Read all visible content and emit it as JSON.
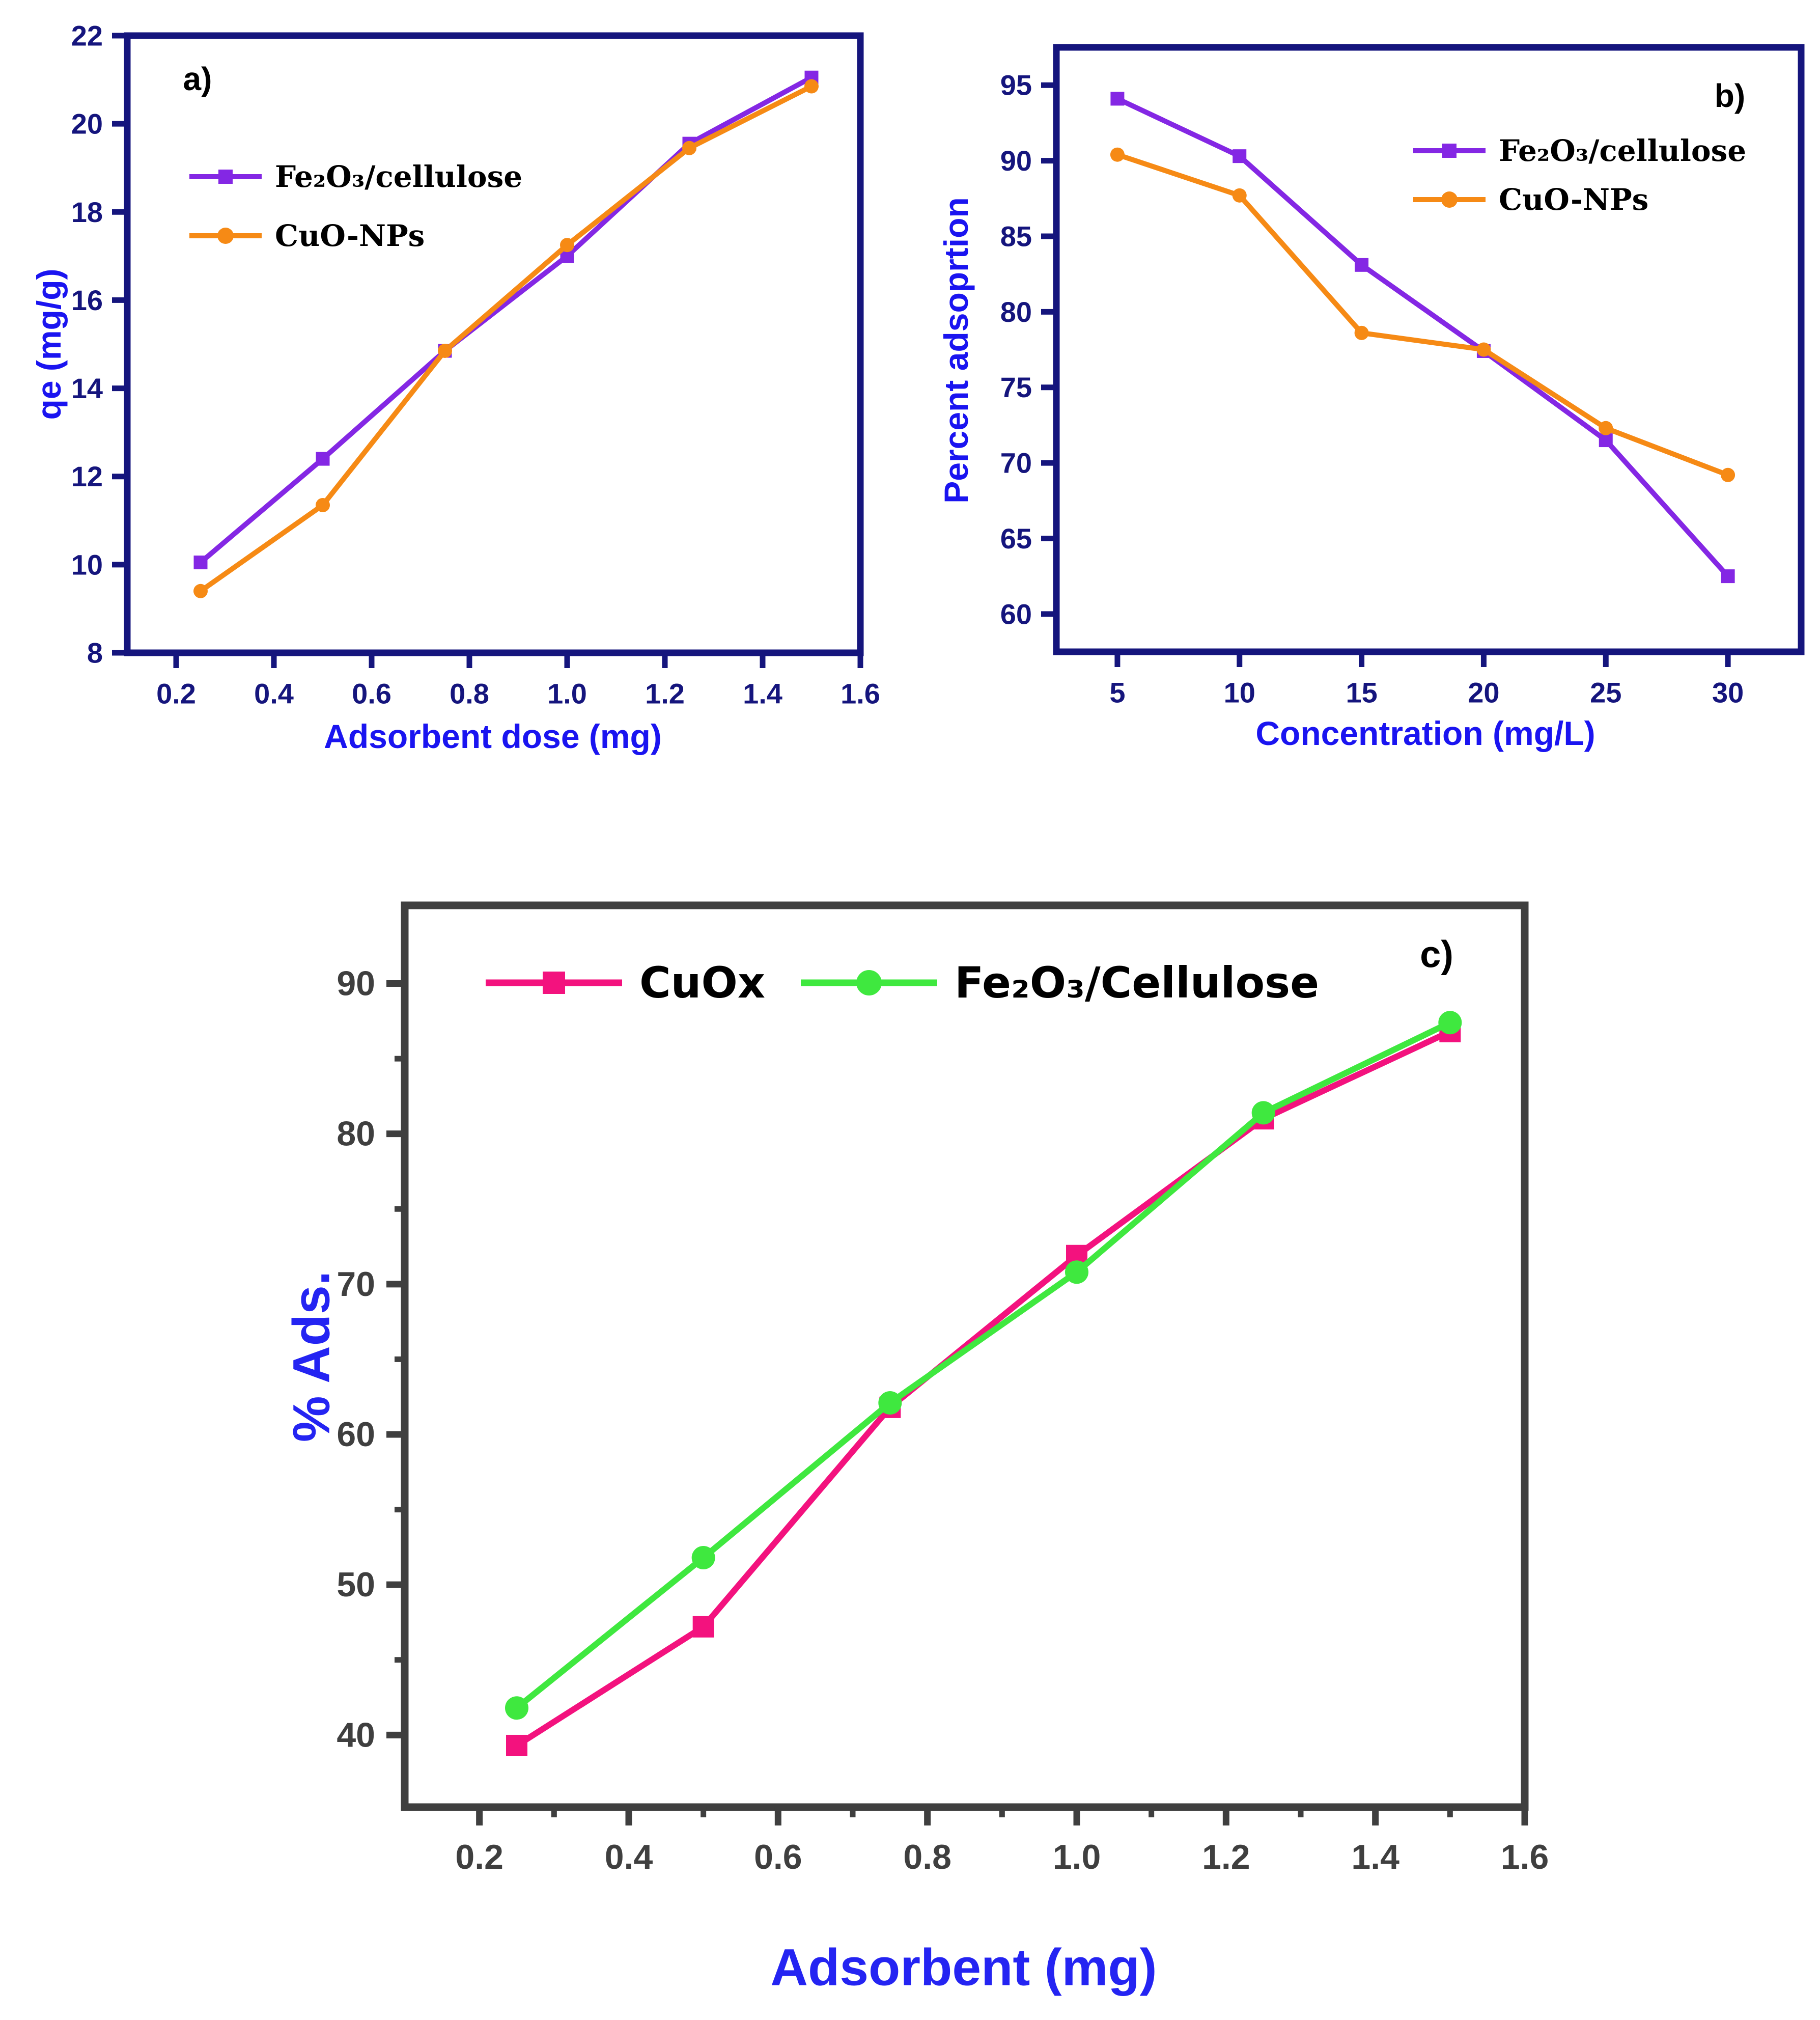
{
  "page": {
    "background": "#ffffff"
  },
  "chart_data": [
    {
      "id": "a",
      "type": "line",
      "panel_label": "a)",
      "x_axis": {
        "title": "Adsorbent dose (mg)",
        "tick_labels": [
          "0.2",
          "0.4",
          "0.6",
          "0.8",
          "1.0",
          "1.2",
          "1.4",
          "1.6"
        ],
        "range": [
          0.1,
          1.6
        ],
        "minor_ticks": []
      },
      "y_axis": {
        "title": "qe (mg/g)",
        "tick_labels": [
          "8",
          "10",
          "12",
          "14",
          "16",
          "18",
          "20",
          "22"
        ],
        "range": [
          8,
          22
        ],
        "minor_ticks": []
      },
      "axis_color": "#15157D",
      "tick_label_color": "#15157D",
      "title_color": "#1A14F0",
      "grid": false,
      "legend_position": "upper-left-inside",
      "series": [
        {
          "name": "Fe₂O₃/cellulose",
          "color": "#8427E4",
          "marker": "square",
          "x": [
            0.25,
            0.5,
            0.75,
            1.0,
            1.25,
            1.5
          ],
          "y": [
            10.05,
            12.4,
            14.85,
            17.0,
            19.55,
            21.05
          ]
        },
        {
          "name": "CuO-NPs",
          "color": "#F68A15",
          "marker": "circle",
          "x": [
            0.25,
            0.5,
            0.75,
            1.0,
            1.25,
            1.5
          ],
          "y": [
            9.4,
            11.35,
            14.85,
            17.25,
            19.45,
            20.85
          ]
        }
      ]
    },
    {
      "id": "b",
      "type": "line",
      "panel_label": "b)",
      "x_axis": {
        "title": "Concentration (mg/L)",
        "tick_labels": [
          "5",
          "10",
          "15",
          "20",
          "25",
          "30"
        ],
        "range": [
          2.5,
          33
        ],
        "minor_ticks": []
      },
      "y_axis": {
        "title": "Percent adsoprtion",
        "tick_labels": [
          "60",
          "65",
          "70",
          "75",
          "80",
          "85",
          "90",
          "95"
        ],
        "range": [
          57.5,
          97.5
        ],
        "minor_ticks": []
      },
      "axis_color": "#15157D",
      "tick_label_color": "#15157D",
      "title_color": "#1A14F0",
      "grid": false,
      "legend_position": "upper-right-inside",
      "series": [
        {
          "name": "Fe₂O₃/cellulose",
          "color": "#8427E4",
          "marker": "square",
          "x": [
            5,
            10,
            15,
            20,
            25,
            30
          ],
          "y": [
            94.1,
            90.3,
            83.1,
            77.4,
            71.5,
            62.5
          ]
        },
        {
          "name": "CuO-NPs",
          "color": "#F68A15",
          "marker": "circle",
          "x": [
            5,
            10,
            15,
            20,
            25,
            30
          ],
          "y": [
            90.4,
            87.7,
            78.6,
            77.5,
            72.3,
            69.2
          ]
        }
      ]
    },
    {
      "id": "c",
      "type": "line",
      "panel_label": "c)",
      "x_axis": {
        "title": "Adsorbent (mg)",
        "tick_labels": [
          "0.2",
          "0.4",
          "0.6",
          "0.8",
          "1.0",
          "1.2",
          "1.4",
          "1.6"
        ],
        "range": [
          0.1,
          1.6
        ],
        "minor_ticks": [
          0.3,
          0.5,
          0.7,
          0.9,
          1.1,
          1.3,
          1.5
        ]
      },
      "y_axis": {
        "title": "% Ads.",
        "tick_labels": [
          "40",
          "50",
          "60",
          "70",
          "80",
          "90"
        ],
        "range": [
          35.2,
          95.2
        ],
        "minor_ticks": [
          45,
          55,
          65,
          75,
          85
        ]
      },
      "axis_color": "#3F3F3F",
      "tick_label_color": "#3F3F3F",
      "title_color": "#2424F2",
      "grid": false,
      "legend_position": "top-inside-horizontal",
      "series": [
        {
          "name": "CuOx",
          "color": "#F3127E",
          "marker": "square",
          "x": [
            0.25,
            0.5,
            0.75,
            1.0,
            1.25,
            1.5
          ],
          "y": [
            39.3,
            47.2,
            61.8,
            71.9,
            81.0,
            86.8
          ]
        },
        {
          "name": "Fe₂O₃/Cellulose",
          "color": "#3FE83F",
          "marker": "circle",
          "x": [
            0.25,
            0.5,
            0.75,
            1.0,
            1.25,
            1.5
          ],
          "y": [
            41.8,
            51.8,
            62.1,
            70.8,
            81.4,
            87.4
          ]
        }
      ]
    }
  ]
}
